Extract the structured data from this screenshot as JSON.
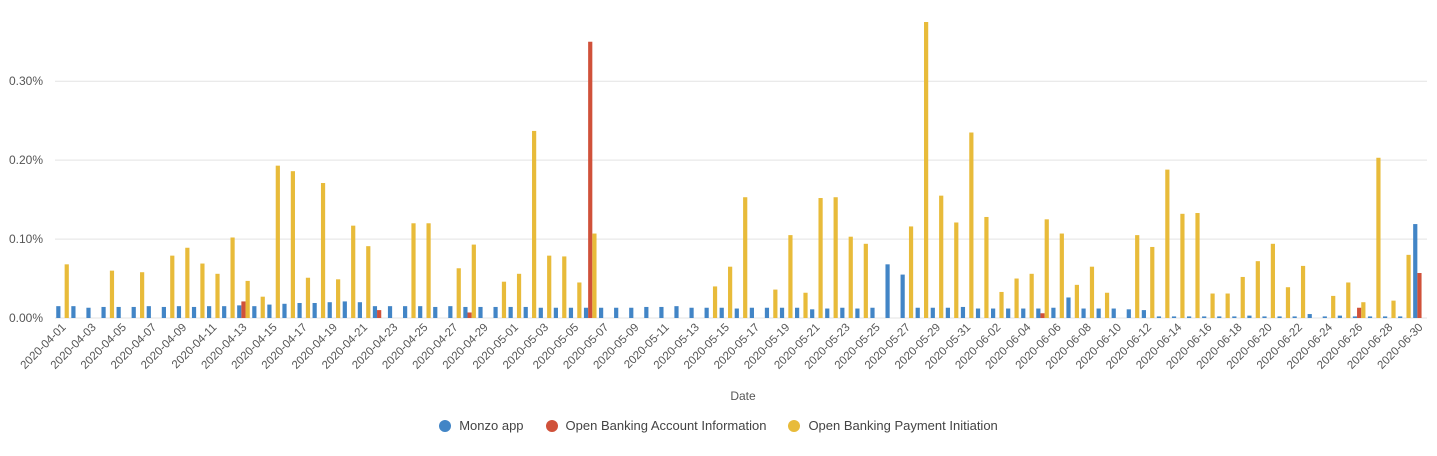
{
  "chart_data": {
    "type": "bar",
    "xlabel": "Date",
    "ylabel": "",
    "yticks": [
      "0.00%",
      "0.10%",
      "0.20%",
      "0.30%"
    ],
    "ylim": [
      0,
      0.00375
    ],
    "legend_position": "bottom",
    "grid": true,
    "categories": [
      "2020-04-01",
      "2020-04-02",
      "2020-04-03",
      "2020-04-04",
      "2020-04-05",
      "2020-04-06",
      "2020-04-07",
      "2020-04-08",
      "2020-04-09",
      "2020-04-10",
      "2020-04-11",
      "2020-04-12",
      "2020-04-13",
      "2020-04-14",
      "2020-04-15",
      "2020-04-16",
      "2020-04-17",
      "2020-04-18",
      "2020-04-19",
      "2020-04-20",
      "2020-04-21",
      "2020-04-22",
      "2020-04-23",
      "2020-04-24",
      "2020-04-25",
      "2020-04-26",
      "2020-04-27",
      "2020-04-28",
      "2020-04-29",
      "2020-04-30",
      "2020-05-01",
      "2020-05-02",
      "2020-05-03",
      "2020-05-04",
      "2020-05-05",
      "2020-05-06",
      "2020-05-07",
      "2020-05-08",
      "2020-05-09",
      "2020-05-10",
      "2020-05-11",
      "2020-05-12",
      "2020-05-13",
      "2020-05-14",
      "2020-05-15",
      "2020-05-16",
      "2020-05-17",
      "2020-05-18",
      "2020-05-19",
      "2020-05-20",
      "2020-05-21",
      "2020-05-22",
      "2020-05-23",
      "2020-05-24",
      "2020-05-25",
      "2020-05-26",
      "2020-05-27",
      "2020-05-28",
      "2020-05-29",
      "2020-05-30",
      "2020-05-31",
      "2020-06-01",
      "2020-06-02",
      "2020-06-03",
      "2020-06-04",
      "2020-06-05",
      "2020-06-06",
      "2020-06-07",
      "2020-06-08",
      "2020-06-09",
      "2020-06-10",
      "2020-06-11",
      "2020-06-12",
      "2020-06-13",
      "2020-06-14",
      "2020-06-15",
      "2020-06-16",
      "2020-06-17",
      "2020-06-18",
      "2020-06-19",
      "2020-06-20",
      "2020-06-21",
      "2020-06-22",
      "2020-06-23",
      "2020-06-24",
      "2020-06-25",
      "2020-06-26",
      "2020-06-27",
      "2020-06-28",
      "2020-06-29",
      "2020-06-30"
    ],
    "tick_labels": [
      "2020-04-01",
      "2020-04-03",
      "2020-04-05",
      "2020-04-07",
      "2020-04-09",
      "2020-04-11",
      "2020-04-13",
      "2020-04-15",
      "2020-04-17",
      "2020-04-19",
      "2020-04-21",
      "2020-04-23",
      "2020-04-25",
      "2020-04-27",
      "2020-04-29",
      "2020-05-01",
      "2020-05-03",
      "2020-05-05",
      "2020-05-07",
      "2020-05-09",
      "2020-05-11",
      "2020-05-13",
      "2020-05-15",
      "2020-05-17",
      "2020-05-19",
      "2020-05-21",
      "2020-05-23",
      "2020-05-25",
      "2020-05-27",
      "2020-05-29",
      "2020-05-31",
      "2020-06-02",
      "2020-06-04",
      "2020-06-06",
      "2020-06-08",
      "2020-06-10",
      "2020-06-12",
      "2020-06-14",
      "2020-06-16",
      "2020-06-18",
      "2020-06-20",
      "2020-06-22",
      "2020-06-24",
      "2020-06-26",
      "2020-06-28",
      "2020-06-30"
    ],
    "series": [
      {
        "name": "Monzo app",
        "color": "#4285c6",
        "values": [
          0.00015,
          0.00015,
          0.00013,
          0.00014,
          0.00014,
          0.00014,
          0.00015,
          0.00014,
          0.00015,
          0.00014,
          0.00015,
          0.00015,
          0.00016,
          0.00015,
          0.00017,
          0.00018,
          0.00019,
          0.00019,
          0.0002,
          0.00021,
          0.0002,
          0.00015,
          0.00015,
          0.00015,
          0.00015,
          0.00014,
          0.00015,
          0.00014,
          0.00014,
          0.00014,
          0.00014,
          0.00014,
          0.00013,
          0.00013,
          0.00013,
          0.00013,
          0.00013,
          0.00013,
          0.00013,
          0.00014,
          0.00014,
          0.00015,
          0.00013,
          0.00013,
          0.00013,
          0.00012,
          0.00013,
          0.00013,
          0.00013,
          0.00013,
          0.00011,
          0.00012,
          0.00013,
          0.00012,
          0.00013,
          0.00068,
          0.00055,
          0.00013,
          0.00013,
          0.00013,
          0.00014,
          0.00012,
          0.00012,
          0.00012,
          0.00012,
          0.00012,
          0.00013,
          0.00026,
          0.00012,
          0.00012,
          0.00012,
          0.00011,
          0.0001,
          2e-05,
          2e-05,
          2e-05,
          2e-05,
          2e-05,
          2e-05,
          3e-05,
          2e-05,
          2e-05,
          2e-05,
          5e-05,
          2e-05,
          3e-05,
          2e-05,
          2e-05,
          2e-05,
          2e-05,
          0.00119
        ]
      },
      {
        "name": "Open Banking Account Information",
        "color": "#d0513a",
        "values": [
          0,
          0,
          0,
          0,
          0,
          0,
          0,
          0,
          0,
          0,
          0,
          0,
          0.00021,
          0,
          0,
          0,
          0,
          0,
          0,
          0,
          0,
          0.0001,
          0,
          0,
          0,
          0,
          0,
          7e-05,
          0,
          0,
          0,
          0,
          0,
          0,
          0,
          0.0035,
          0,
          0,
          0,
          0,
          0,
          0,
          0,
          0,
          0,
          0,
          0,
          0,
          0,
          0,
          0,
          0,
          0,
          0,
          0,
          0,
          0,
          0,
          0,
          0,
          0,
          0,
          0,
          0,
          0,
          6e-05,
          0,
          0,
          0,
          0,
          0,
          0,
          0,
          0,
          0,
          0,
          0,
          0,
          0,
          0,
          0,
          0,
          0,
          0,
          0,
          0,
          0.00013,
          0,
          0,
          0,
          0.00057
        ]
      },
      {
        "name": "Open Banking Payment Initiation",
        "color": "#e8bb3a",
        "values": [
          0.00068,
          0,
          0,
          0.0006,
          0,
          0.00058,
          0,
          0.00079,
          0.00089,
          0.00069,
          0.00056,
          0.00102,
          0.00047,
          0.00027,
          0.00193,
          0.00186,
          0.00051,
          0.00171,
          0.00049,
          0.00117,
          0.00091,
          0,
          0,
          0.0012,
          0.0012,
          0,
          0.00063,
          0.00093,
          0,
          0.00046,
          0.00056,
          0.00237,
          0.00079,
          0.00078,
          0.00045,
          0.00107,
          0,
          0,
          0,
          0,
          0,
          0,
          0,
          0.0004,
          0.00065,
          0.00153,
          0,
          0.00036,
          0.00105,
          0.00032,
          0.00152,
          0.00153,
          0.00103,
          0.00094,
          0,
          0,
          0.00116,
          0.00375,
          0.00155,
          0.00121,
          0.00235,
          0.00128,
          0.00033,
          0.0005,
          0.00056,
          0.00125,
          0.00107,
          0.00042,
          0.00065,
          0.00032,
          0,
          0.00105,
          0.0009,
          0.00188,
          0.00132,
          0.00133,
          0.00031,
          0.00031,
          0.00052,
          0.00072,
          0.00094,
          0.00039,
          0.00066,
          0,
          0.00028,
          0.00045,
          0.0002,
          0.00203,
          0.00022,
          0.0008,
          0
        ]
      }
    ]
  }
}
